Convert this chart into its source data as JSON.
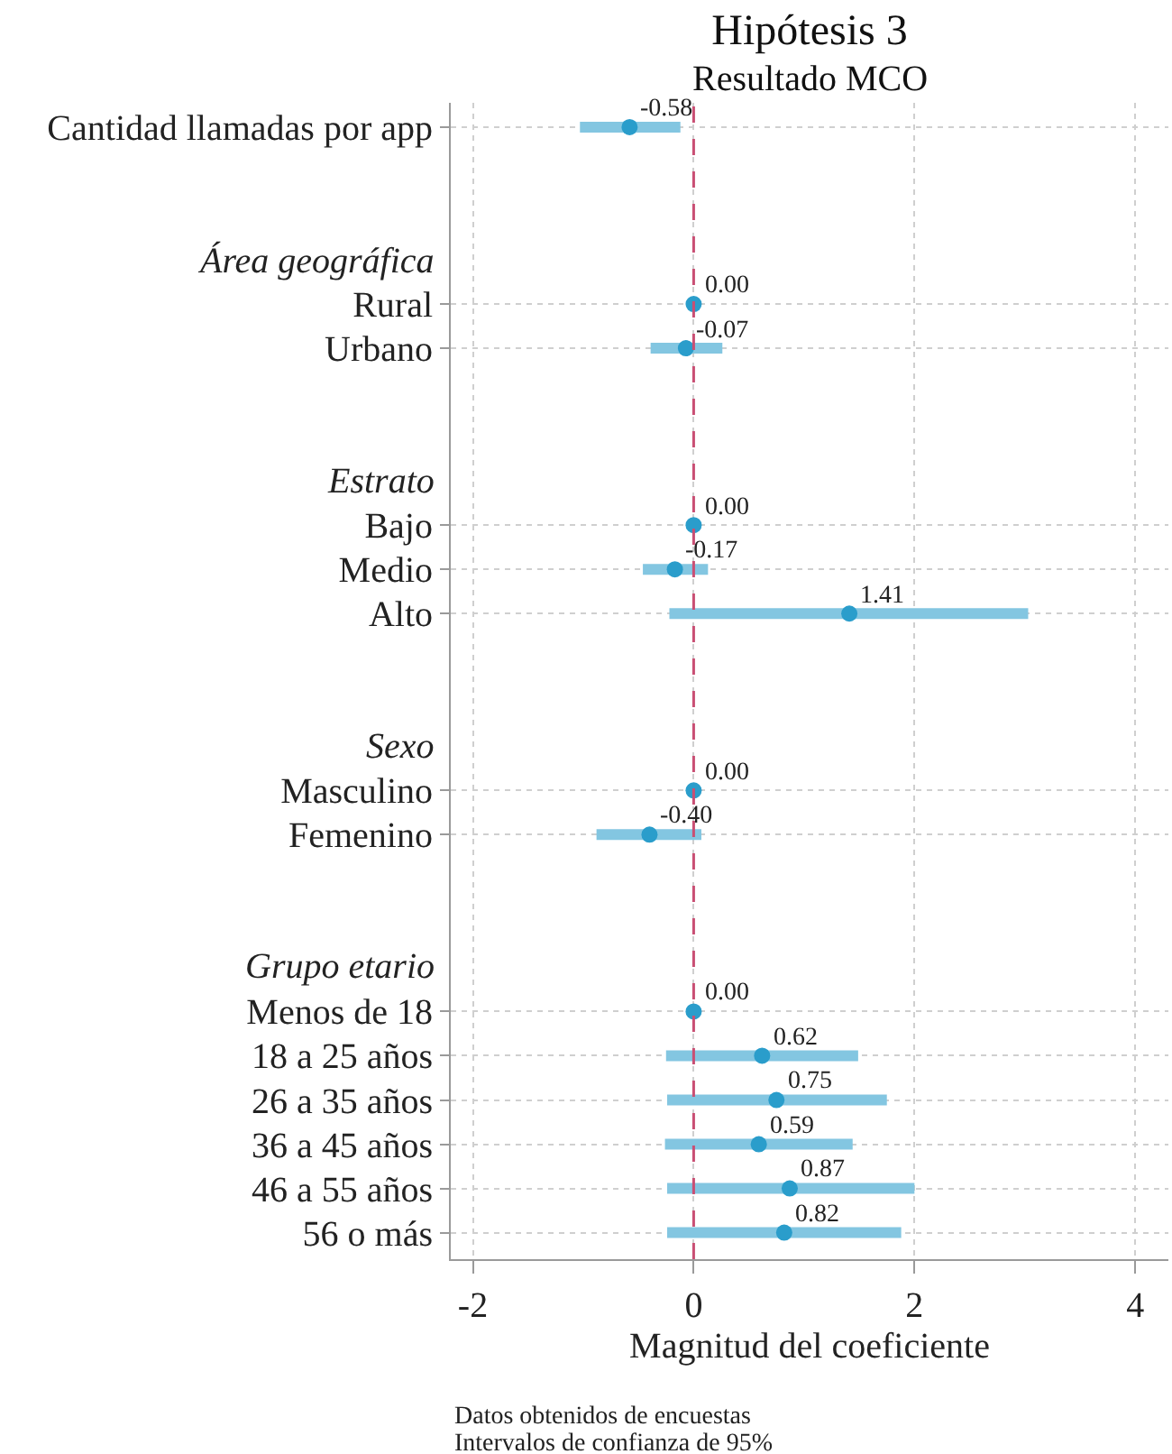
{
  "chart_data": {
    "type": "scatter",
    "orientation": "horizontal",
    "title": "Hipótesis 3",
    "subtitle": "Resultado MCO",
    "xlabel": "Magnitud del coeficiente",
    "annotations": [
      "Datos obtenidos de encuestas",
      "Intervalos de confianza de 95%"
    ],
    "categories": [
      "Cantidad llamadas por app",
      null,
      null,
      "Área geográfica",
      "Rural",
      "Urbano",
      null,
      null,
      "Estrato",
      "Bajo",
      "Medio",
      "Alto",
      null,
      null,
      "Sexo",
      "Masculino",
      "Femenino",
      null,
      null,
      "Grupo etario",
      "Menos de 18",
      "18 a 25 años",
      "26 a 35 años",
      "36 a 45 años",
      "46 a 55 años",
      "56 o más"
    ],
    "values": [
      -0.58,
      null,
      null,
      null,
      0.0,
      -0.07,
      null,
      null,
      null,
      0.0,
      -0.17,
      1.41,
      null,
      null,
      null,
      0.0,
      -0.4,
      null,
      null,
      null,
      0.0,
      0.62,
      0.75,
      0.59,
      0.87,
      0.82
    ],
    "errors": [
      [
        -1.03,
        -0.12
      ],
      null,
      null,
      null,
      null,
      [
        -0.39,
        0.26
      ],
      null,
      null,
      null,
      null,
      [
        -0.46,
        0.13
      ],
      [
        -0.22,
        3.03
      ],
      null,
      null,
      null,
      null,
      [
        -0.88,
        0.07
      ],
      null,
      null,
      null,
      null,
      [
        -0.25,
        1.49
      ],
      [
        -0.24,
        1.75
      ],
      [
        -0.26,
        1.44
      ],
      [
        -0.24,
        2.0
      ],
      [
        -0.24,
        1.88
      ]
    ],
    "value_labels": [
      "-0.58",
      null,
      null,
      null,
      "0.00",
      "-0.07",
      null,
      null,
      null,
      "0.00",
      "-0.17",
      "1.41",
      null,
      null,
      null,
      "0.00",
      "-0.40",
      null,
      null,
      null,
      "0.00",
      "0.62",
      "0.75",
      "0.59",
      "0.87",
      "0.82"
    ],
    "color": "#2a9dcb",
    "marker": "circle",
    "xlim": [
      -2.2,
      4.3
    ],
    "xticks": [
      -2,
      0,
      2,
      4
    ],
    "grid": true,
    "ref_lines": [
      {
        "axis": "x",
        "value": 0,
        "color": "#c94f74",
        "line_style": "dashed"
      }
    ]
  }
}
